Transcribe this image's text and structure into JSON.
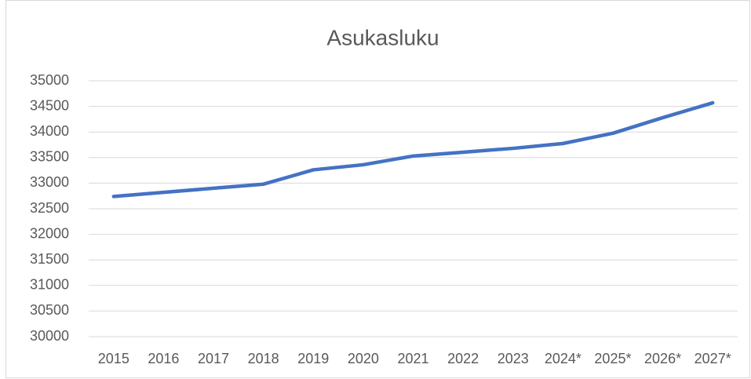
{
  "chart_data": {
    "type": "line",
    "title": "Asukasluku",
    "categories": [
      "2015",
      "2016",
      "2017",
      "2018",
      "2019",
      "2020",
      "2021",
      "2022",
      "2023",
      "2024*",
      "2025*",
      "2026*",
      "2027*"
    ],
    "values": [
      32740,
      32820,
      32900,
      32980,
      33260,
      33360,
      33530,
      33605,
      33680,
      33775,
      33975,
      34280,
      34570
    ],
    "color": "#4472c4",
    "ylim": [
      30000,
      35000
    ],
    "yticks": [
      30000,
      30500,
      31000,
      31500,
      32000,
      32500,
      33000,
      33500,
      34000,
      34500,
      35000
    ],
    "grid": true
  }
}
